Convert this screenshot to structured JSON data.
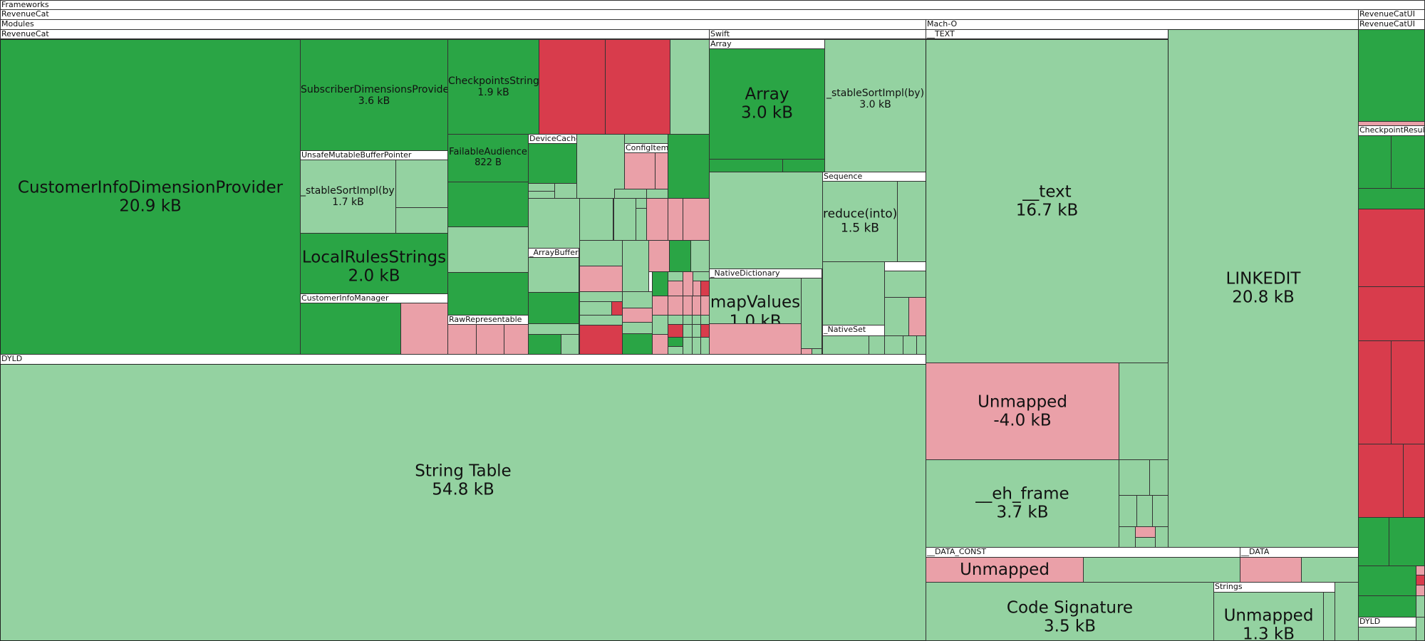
{
  "colors": {
    "dark_green": "#2aa545",
    "light_green": "#94d2a1",
    "red": "#d83c4c",
    "pink": "#eaa0a8"
  },
  "headers": {
    "frameworks": "Frameworks",
    "revenuecat_fw": "RevenueCat",
    "modules": "Modules",
    "revenuecat_mod": "RevenueCat",
    "swift": "Swift",
    "array": "Array",
    "mach_o": "Mach-O",
    "text_seg": "__TEXT",
    "revenuecatui_1": "RevenueCatUI",
    "revenuecatui_2": "RevenueCatUI",
    "checkpoint_result": "CheckpointResult",
    "unsafe_buffer": "UnsafeMutableBufferPointer",
    "customer_info_manager": "CustomerInfoManager",
    "device_cache": "DeviceCache",
    "config_item": "ConfigItem",
    "array_buffer": "_ArrayBuffer",
    "raw_representable": "RawRepresentable",
    "sequence": "Sequence",
    "native_dictionary": "_NativeDictionary",
    "native_set": "_NativeSet",
    "dyld_left": "DYLD",
    "data_const": "__DATA_CONST",
    "data": "__DATA",
    "strings": "Strings",
    "dyld_right": "DYLD"
  },
  "nodes": {
    "customer_info_dimension_provider": {
      "name": "CustomerInfoDimensionProvider",
      "size": "20.9 kB"
    },
    "subscriber_dimensions_provider": {
      "name": "SubscriberDimensionsProvider",
      "size": "3.6 kB"
    },
    "checkpoints_strings": {
      "name": "CheckpointsStrings",
      "size": "1.9 kB"
    },
    "stable_sort_left": {
      "name": "_stableSortImpl(by)",
      "size": "1.7 kB"
    },
    "failable_audience": {
      "name": "FailableAudience",
      "size": "822 B"
    },
    "local_rules_strings": {
      "name": "LocalRulesStrings",
      "size": "2.0 kB"
    },
    "array": {
      "name": "Array",
      "size": "3.0 kB"
    },
    "stable_sort_right": {
      "name": "_stableSortImpl(by)",
      "size": "3.0 kB"
    },
    "reduce_into": {
      "name": "reduce(into)",
      "size": "1.5 kB"
    },
    "map_values": {
      "name": "mapValues",
      "size": "1.0 kB"
    },
    "text": {
      "name": "__text",
      "size": "16.7 kB"
    },
    "linkedit": {
      "name": "LINKEDIT",
      "size": "20.8 kB"
    },
    "unmapped_large": {
      "name": "Unmapped",
      "size": "-4.0 kB"
    },
    "eh_frame": {
      "name": "__eh_frame",
      "size": "3.7 kB"
    },
    "unmapped_data_const": {
      "name": "Unmapped"
    },
    "string_table": {
      "name": "String Table",
      "size": "54.8 kB"
    },
    "code_signature": {
      "name": "Code Signature",
      "size": "3.5 kB"
    },
    "unmapped_strings": {
      "name": "Unmapped",
      "size": "1.3 kB"
    }
  }
}
